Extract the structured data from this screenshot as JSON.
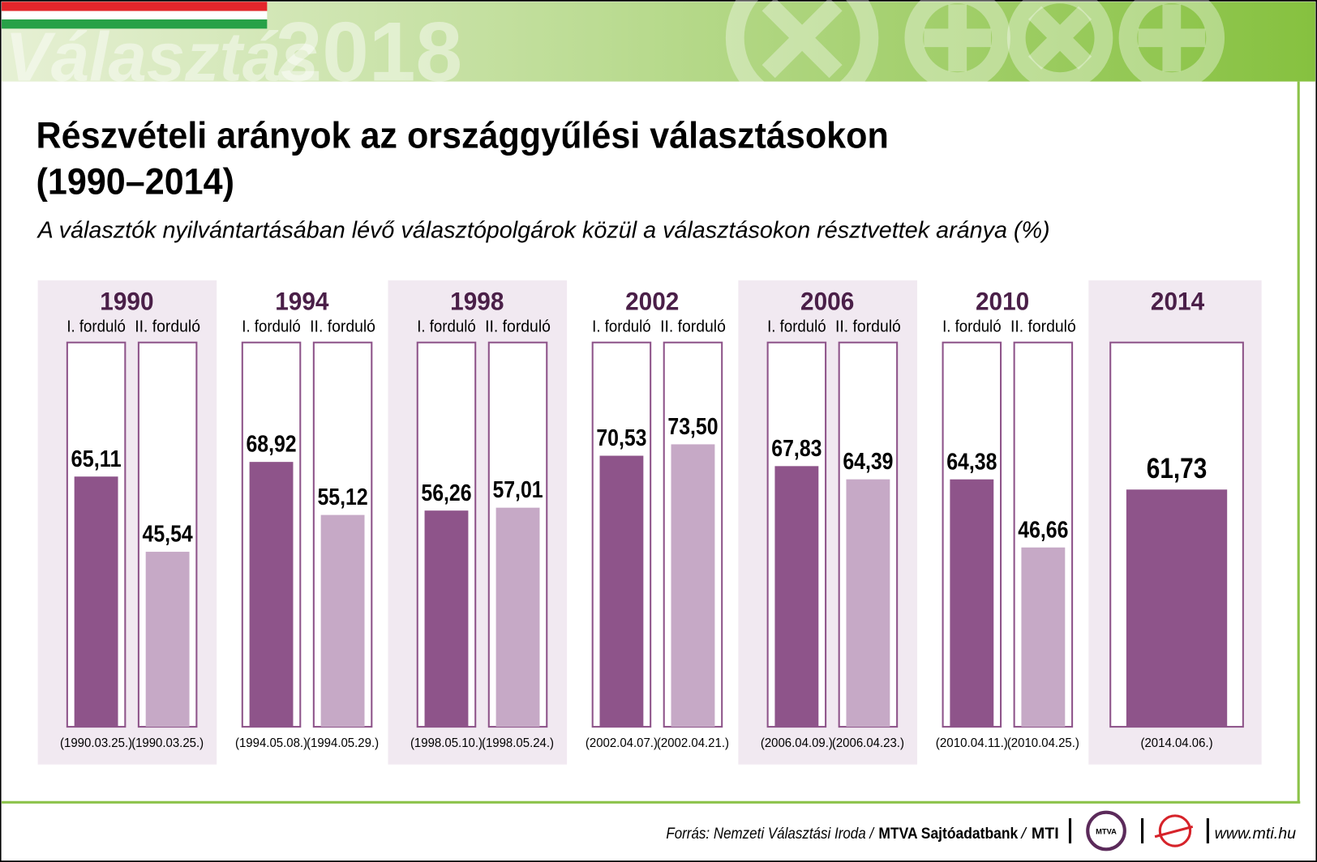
{
  "header": {
    "word": "Választás",
    "year": "2018"
  },
  "chart_data": {
    "type": "bar",
    "title": "Részvételi arányok az országgyűlési választásokon",
    "title_line2": "(1990–2014)",
    "subtitle": "A választók nyilvántartásában lévő választópolgárok közül a választásokon résztvettek aránya (%)",
    "ylim": [
      0,
      100
    ],
    "colors": [
      "#8e548a",
      "#c6a9c6"
    ],
    "groups": [
      {
        "year": "1990",
        "rounds": [
          "I. forduló",
          "II. forduló"
        ],
        "values": [
          65.11,
          45.54
        ],
        "value_labels": [
          "65,11",
          "45,54"
        ],
        "dates": [
          "(1990.03.25.)",
          "(1990.03.25.)"
        ]
      },
      {
        "year": "1994",
        "rounds": [
          "I. forduló",
          "II. forduló"
        ],
        "values": [
          68.92,
          55.12
        ],
        "value_labels": [
          "68,92",
          "55,12"
        ],
        "dates": [
          "(1994.05.08.)",
          "(1994.05.29.)"
        ]
      },
      {
        "year": "1998",
        "rounds": [
          "I. forduló",
          "II. forduló"
        ],
        "values": [
          56.26,
          57.01
        ],
        "value_labels": [
          "56,26",
          "57,01"
        ],
        "dates": [
          "(1998.05.10.)",
          "(1998.05.24.)"
        ]
      },
      {
        "year": "2002",
        "rounds": [
          "I. forduló",
          "II. forduló"
        ],
        "values": [
          70.53,
          73.5
        ],
        "value_labels": [
          "70,53",
          "73,50"
        ],
        "dates": [
          "(2002.04.07.)",
          "(2002.04.21.)"
        ]
      },
      {
        "year": "2006",
        "rounds": [
          "I. forduló",
          "II. forduló"
        ],
        "values": [
          67.83,
          64.39
        ],
        "value_labels": [
          "67,83",
          "64,39"
        ],
        "dates": [
          "(2006.04.09.)",
          "(2006.04.23.)"
        ]
      },
      {
        "year": "2010",
        "rounds": [
          "I. forduló",
          "II. forduló"
        ],
        "values": [
          64.38,
          46.66
        ],
        "value_labels": [
          "64,38",
          "46,66"
        ],
        "dates": [
          "(2010.04.11.)",
          "(2010.04.25.)"
        ]
      },
      {
        "year": "2014",
        "values": [
          61.73
        ],
        "value_labels": [
          "61,73"
        ],
        "dates": [
          "(2014.04.06.)"
        ]
      }
    ]
  },
  "footer": {
    "source": "Forrás: Nemzeti Választási Iroda /",
    "bank": "MTVA Sajtóadatbank",
    "sep": "/",
    "mti": "MTI",
    "logo": "MTVA",
    "url": "www.mti.hu"
  }
}
